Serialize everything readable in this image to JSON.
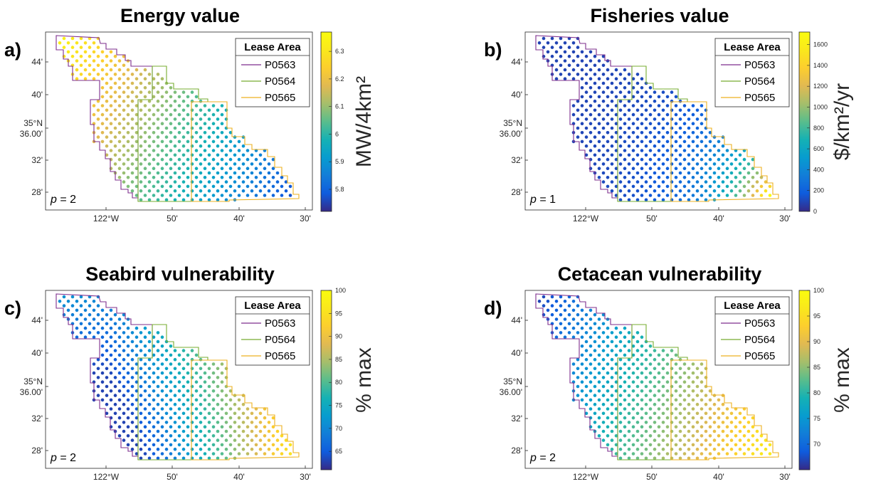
{
  "chart_data": [
    {
      "type": "scatter",
      "panel_label": "a)",
      "title": "Energy value",
      "colorbar_label": "MW/4km²",
      "colorbar_range": [
        5.72,
        6.37
      ],
      "colorbar_ticks": [
        "5.8",
        "5.9",
        "6",
        "6.1",
        "6.2",
        "6.3"
      ],
      "colorbar_tick_values": [
        5.8,
        5.9,
        6.0,
        6.1,
        6.2,
        6.3
      ],
      "annotation": "p = 2",
      "trend": "decreases from northwest to southeast",
      "value_range": [
        5.8,
        6.35
      ]
    },
    {
      "type": "scatter",
      "panel_label": "b)",
      "title": "Fisheries value",
      "colorbar_label": "$/km²/yr",
      "colorbar_range": [
        0,
        1720
      ],
      "colorbar_ticks": [
        "0",
        "200",
        "400",
        "600",
        "800",
        "1000",
        "1200",
        "1400",
        "1600"
      ],
      "colorbar_tick_values": [
        0,
        200,
        400,
        600,
        800,
        1000,
        1200,
        1400,
        1600
      ],
      "annotation": "p = 1",
      "trend": "low across most of the area, highest at the southeast tip",
      "value_range": [
        0,
        1700
      ]
    },
    {
      "type": "scatter",
      "panel_label": "c)",
      "title": "Seabird vulnerability",
      "colorbar_label": "% max",
      "colorbar_range": [
        61,
        100
      ],
      "colorbar_ticks": [
        "65",
        "70",
        "75",
        "80",
        "85",
        "90",
        "95",
        "100"
      ],
      "colorbar_tick_values": [
        65,
        70,
        75,
        80,
        85,
        90,
        95,
        100
      ],
      "annotation": "p = 2",
      "trend": "lowest in the southwest interior, highest in the southeast",
      "value_range": [
        62,
        100
      ]
    },
    {
      "type": "scatter",
      "panel_label": "d)",
      "title": "Cetacean vulnerability",
      "colorbar_label": "% max",
      "colorbar_range": [
        65,
        100
      ],
      "colorbar_ticks": [
        "70",
        "75",
        "80",
        "85",
        "90",
        "95",
        "100"
      ],
      "colorbar_tick_values": [
        70,
        75,
        80,
        85,
        90,
        95,
        100
      ],
      "annotation": "p = 2",
      "trend": "increases from northwest to southeast",
      "value_range": [
        66,
        100
      ]
    }
  ],
  "map_axes": {
    "y_ticks": [
      "44'",
      "40'",
      "35°N\n36.00'",
      "32'",
      "28'"
    ],
    "x_ticks": [
      "122°W",
      "50'",
      "40'",
      "30'"
    ]
  },
  "legend": {
    "title": "Lease Area",
    "items": [
      {
        "name": "P0563",
        "color": "#7E2F8E"
      },
      {
        "name": "P0564",
        "color": "#77AC30"
      },
      {
        "name": "P0565",
        "color": "#EDB120"
      }
    ]
  },
  "colormap": "parula"
}
